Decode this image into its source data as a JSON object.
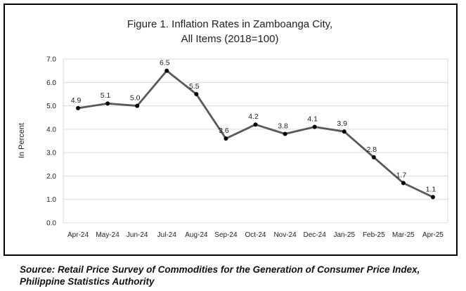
{
  "chart_data": {
    "type": "line",
    "title_lines": [
      "Figure 1. Inflation Rates in Zamboanga City,",
      "All Items (2018=100)"
    ],
    "ylabel": "In Percent",
    "xlabel": "",
    "ylim": [
      0,
      7
    ],
    "yticks": [
      "0.0",
      "1.0",
      "2.0",
      "3.0",
      "4.0",
      "5.0",
      "6.0",
      "7.0"
    ],
    "grid": true,
    "categories": [
      "Apr-24",
      "May-24",
      "Jun-24",
      "Jul-24",
      "Aug-24",
      "Sep-24",
      "Oct-24",
      "Nov-24",
      "Dec-24",
      "Jan-25",
      "Feb-25",
      "Mar-25",
      "Apr-25"
    ],
    "values": [
      4.9,
      5.1,
      5.0,
      6.5,
      5.5,
      3.6,
      4.2,
      3.8,
      4.1,
      3.9,
      2.8,
      1.7,
      1.1
    ],
    "data_labels": [
      "4.9",
      "5.1",
      "5.0",
      "6.5",
      "5.5",
      "3.6",
      "4.2",
      "3.8",
      "4.1",
      "3.9",
      "2.8",
      "1.7",
      "1.1"
    ],
    "line_color": "#595959",
    "marker_color": "#000000",
    "grid_color": "#d9d9d9"
  },
  "source_note": "Source: Retail Price Survey of Commodities for the Generation of Consumer Price Index, Philippine Statistics Authority"
}
